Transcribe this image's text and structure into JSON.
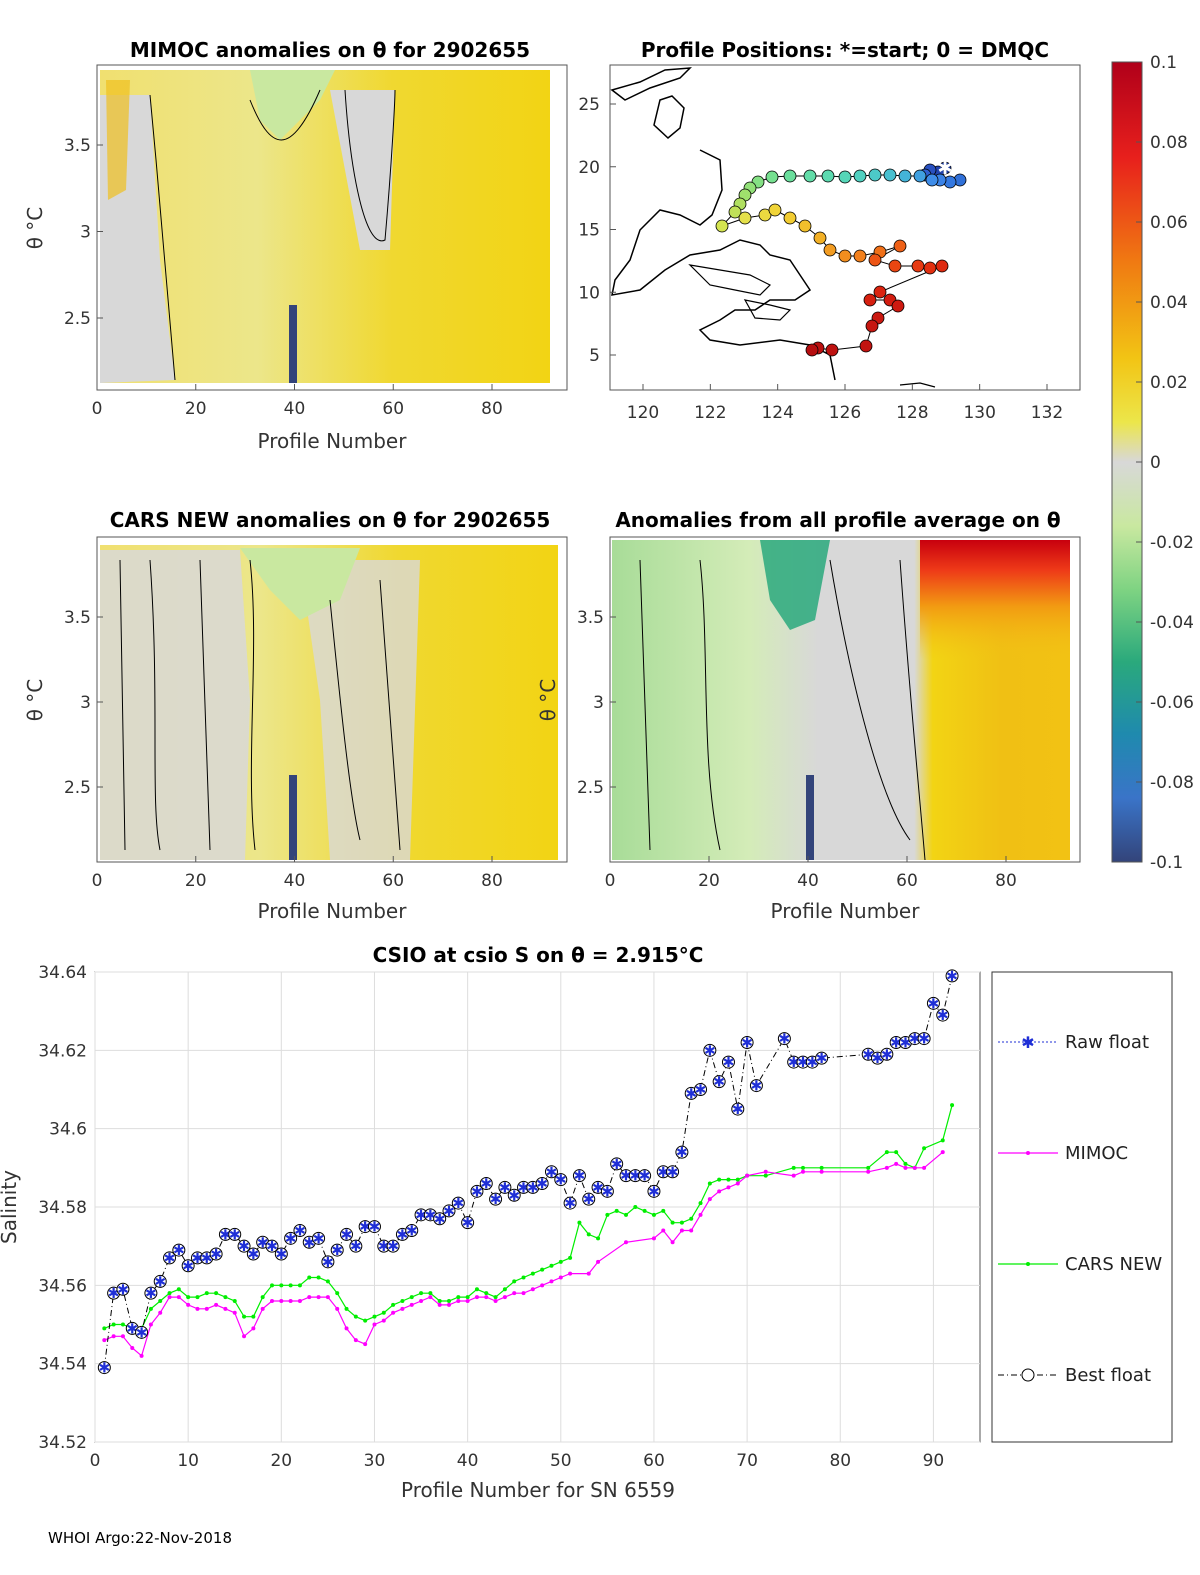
{
  "footer": "WHOI Argo:22-Nov-2018",
  "colors": {
    "raw": "#1f2fd6",
    "mimoc": "#ff00ff",
    "cars": "#00ee00",
    "best": "#000000",
    "map_ocean": "#ffffff",
    "coast": "#000000"
  },
  "panels": {
    "mimoc": {
      "title": "MIMOC anomalies on θ  for 2902655",
      "xlabel": "Profile Number",
      "ylabel": "θ °C",
      "xticks": [
        "0",
        "20",
        "40",
        "60",
        "80"
      ],
      "yticks": [
        "2.5",
        "3",
        "3.5"
      ]
    },
    "map": {
      "title": "Profile Positions: *=start; 0 = DMQC",
      "xticks": [
        "120",
        "122",
        "124",
        "126",
        "128",
        "130",
        "132"
      ],
      "yticks": [
        "5",
        "10",
        "15",
        "20",
        "25"
      ]
    },
    "cars": {
      "title": "CARS NEW anomalies on θ for 2902655",
      "xlabel": "Profile Number",
      "ylabel": "θ °C",
      "xticks": [
        "0",
        "20",
        "40",
        "60",
        "80"
      ],
      "yticks": [
        "2.5",
        "3",
        "3.5"
      ]
    },
    "avg": {
      "title": "Anomalies from all profile average on θ",
      "xlabel": "Profile Number",
      "ylabel": "θ °C",
      "xticks": [
        "0",
        "20",
        "40",
        "60",
        "80"
      ],
      "yticks": [
        "2.5",
        "3",
        "3.5"
      ]
    },
    "colorbar": {
      "ticks": [
        "0.1",
        "0.08",
        "0.06",
        "0.04",
        "0.02",
        "0",
        "-0.02",
        "-0.04",
        "-0.06",
        "-0.08",
        "-0.1"
      ]
    }
  },
  "chart_data": {
    "type": "line",
    "title": "CSIO at csio S on θ = 2.915°C",
    "xlabel": "Profile Number for SN 6559",
    "ylabel": "Salinity",
    "xlim": [
      0,
      95
    ],
    "ylim": [
      34.52,
      34.64
    ],
    "xticks": [
      "0",
      "10",
      "20",
      "30",
      "40",
      "50",
      "60",
      "70",
      "80",
      "90"
    ],
    "yticks": [
      "34.52",
      "34.54",
      "34.56",
      "34.58",
      "34.6",
      "34.62",
      "34.64"
    ],
    "legend": [
      "Raw float",
      "MIMOC",
      "CARS NEW",
      "Best float"
    ],
    "legend_position": "outside-right",
    "grid": true,
    "series": [
      {
        "name": "Raw float",
        "x": [
          1,
          2,
          3,
          4,
          5,
          6,
          7,
          8,
          9,
          10,
          11,
          12,
          13,
          14,
          15,
          16,
          17,
          18,
          19,
          20,
          21,
          22,
          23,
          24,
          25,
          26,
          27,
          28,
          29,
          30,
          31,
          32,
          33,
          34,
          35,
          36,
          37,
          38,
          39,
          40,
          41,
          42,
          43,
          44,
          45,
          46,
          47,
          48,
          49,
          50,
          51,
          52,
          53,
          54,
          55,
          56,
          57,
          58,
          59,
          60,
          61,
          62,
          63,
          64,
          65,
          66,
          67,
          68,
          69,
          70,
          71,
          74,
          75,
          76,
          77,
          78,
          83,
          84,
          85,
          86,
          87,
          88,
          89,
          90,
          91,
          92
        ],
        "values": [
          34.539,
          34.558,
          34.559,
          34.549,
          34.548,
          34.558,
          34.561,
          34.567,
          34.569,
          34.565,
          34.567,
          34.567,
          34.568,
          34.573,
          34.573,
          34.57,
          34.568,
          34.571,
          34.57,
          34.568,
          34.572,
          34.574,
          34.571,
          34.572,
          34.566,
          34.569,
          34.573,
          34.57,
          34.575,
          34.575,
          34.57,
          34.57,
          34.573,
          34.574,
          34.578,
          34.578,
          34.577,
          34.579,
          34.581,
          34.576,
          34.584,
          34.586,
          34.582,
          34.585,
          34.583,
          34.585,
          34.585,
          34.586,
          34.589,
          34.587,
          34.581,
          34.588,
          34.582,
          34.585,
          34.584,
          34.591,
          34.588,
          34.588,
          34.588,
          34.584,
          34.589,
          34.589,
          34.594,
          34.609,
          34.61,
          34.62,
          34.612,
          34.617,
          34.605,
          34.622,
          34.611,
          34.623,
          34.617,
          34.617,
          34.617,
          34.618,
          34.619,
          34.618,
          34.619,
          34.622,
          34.622,
          34.623,
          34.623,
          34.632,
          34.629,
          34.639
        ]
      },
      {
        "name": "MIMOC",
        "x": [
          1,
          2,
          3,
          4,
          5,
          6,
          7,
          8,
          9,
          10,
          11,
          12,
          13,
          14,
          15,
          16,
          17,
          18,
          19,
          20,
          21,
          22,
          23,
          24,
          25,
          26,
          27,
          28,
          29,
          30,
          31,
          32,
          33,
          34,
          35,
          36,
          37,
          38,
          39,
          40,
          41,
          42,
          43,
          44,
          45,
          46,
          47,
          48,
          49,
          50,
          51,
          53,
          54,
          57,
          60,
          61,
          62,
          63,
          64,
          65,
          66,
          67,
          68,
          69,
          70,
          72,
          75,
          76,
          78,
          83,
          85,
          86,
          87,
          88,
          89,
          91
        ],
        "values": [
          34.546,
          34.547,
          34.547,
          34.544,
          34.542,
          34.55,
          34.553,
          34.557,
          34.557,
          34.555,
          34.554,
          34.554,
          34.555,
          34.554,
          34.553,
          34.547,
          34.549,
          34.554,
          34.556,
          34.556,
          34.556,
          34.556,
          34.557,
          34.557,
          34.557,
          34.554,
          34.549,
          34.546,
          34.545,
          34.55,
          34.551,
          34.553,
          34.554,
          34.555,
          34.556,
          34.557,
          34.555,
          34.555,
          34.556,
          34.556,
          34.557,
          34.557,
          34.556,
          34.557,
          34.558,
          34.558,
          34.559,
          34.56,
          34.561,
          34.562,
          34.563,
          34.563,
          34.566,
          34.571,
          34.572,
          34.574,
          34.571,
          34.574,
          34.574,
          34.578,
          34.582,
          34.584,
          34.585,
          34.586,
          34.588,
          34.589,
          34.588,
          34.589,
          34.589,
          34.589,
          34.59,
          34.591,
          34.59,
          34.59,
          34.59,
          34.594
        ]
      },
      {
        "name": "CARS NEW",
        "x": [
          1,
          2,
          3,
          4,
          5,
          6,
          7,
          8,
          9,
          10,
          11,
          12,
          13,
          14,
          15,
          16,
          17,
          18,
          19,
          20,
          21,
          22,
          23,
          24,
          25,
          26,
          27,
          28,
          29,
          30,
          31,
          32,
          33,
          34,
          35,
          36,
          37,
          38,
          39,
          40,
          41,
          42,
          43,
          44,
          45,
          46,
          47,
          48,
          49,
          50,
          51,
          52,
          53,
          54,
          55,
          56,
          57,
          58,
          59,
          60,
          61,
          62,
          63,
          64,
          65,
          66,
          67,
          68,
          69,
          70,
          72,
          75,
          76,
          78,
          83,
          85,
          86,
          87,
          88,
          89,
          91,
          92
        ],
        "values": [
          34.549,
          34.55,
          34.55,
          34.549,
          34.549,
          34.554,
          34.556,
          34.558,
          34.559,
          34.557,
          34.557,
          34.558,
          34.558,
          34.557,
          34.556,
          34.552,
          34.552,
          34.557,
          34.56,
          34.56,
          34.56,
          34.56,
          34.562,
          34.562,
          34.561,
          34.558,
          34.554,
          34.552,
          34.551,
          34.552,
          34.553,
          34.555,
          34.556,
          34.557,
          34.558,
          34.558,
          34.556,
          34.556,
          34.557,
          34.557,
          34.559,
          34.558,
          34.557,
          34.559,
          34.561,
          34.562,
          34.563,
          34.564,
          34.565,
          34.566,
          34.567,
          34.576,
          34.573,
          34.572,
          34.578,
          34.579,
          34.578,
          34.58,
          34.579,
          34.578,
          34.579,
          34.576,
          34.576,
          34.577,
          34.581,
          34.586,
          34.587,
          34.587,
          34.587,
          34.588,
          34.588,
          34.59,
          34.59,
          34.59,
          34.59,
          34.594,
          34.594,
          34.591,
          34.59,
          34.595,
          34.597,
          34.606
        ]
      },
      {
        "name": "Best float",
        "same_as": "Raw float"
      }
    ]
  }
}
